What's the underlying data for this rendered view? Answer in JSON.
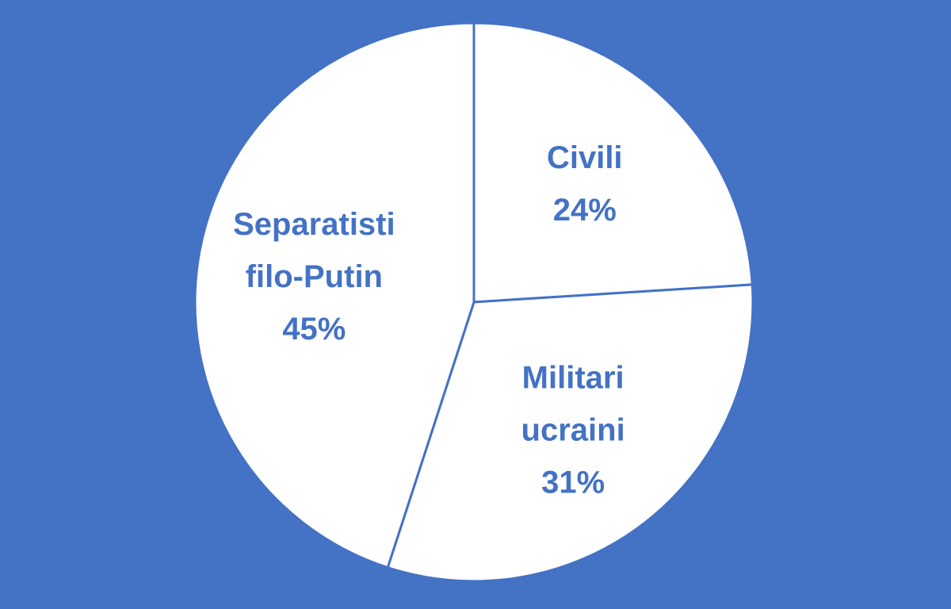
{
  "chart_data": {
    "type": "pie",
    "slices": [
      {
        "label_lines": [
          "Civili"
        ],
        "percent_label": "24%",
        "value": 24
      },
      {
        "label_lines": [
          "Militari",
          "ucraini"
        ],
        "percent_label": "31%",
        "value": 31
      },
      {
        "label_lines": [
          "Separatisti",
          "filo-Putin"
        ],
        "percent_label": "45%",
        "value": 45
      }
    ],
    "start_angle_deg": 0,
    "direction": "clockwise",
    "legend": "none",
    "data_labels": "inside"
  },
  "colors": {
    "background": "#4472C4",
    "slice_fill": "#FFFFFF",
    "slice_border": "#4472C4",
    "label_text": "#4472C4"
  }
}
